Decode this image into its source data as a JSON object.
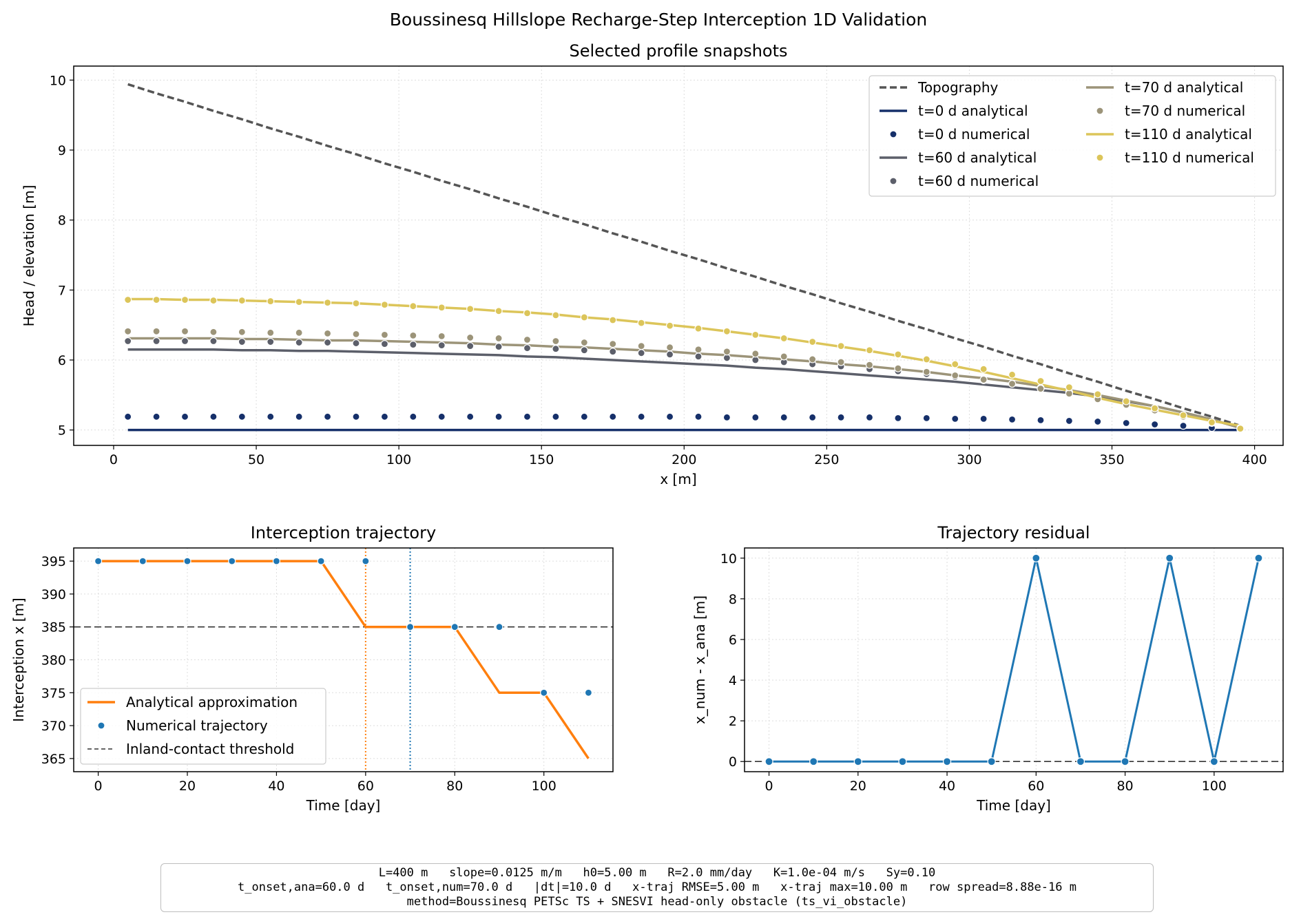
{
  "suptitle": "Boussinesq Hillslope Recharge-Step Interception 1D Validation",
  "chart_data": [
    {
      "type": "line",
      "title": "Selected profile snapshots",
      "xlabel": "x [m]",
      "ylabel": "Head / elevation [m]",
      "xlim": [
        -14,
        410
      ],
      "ylim": [
        4.78,
        10.2
      ],
      "xticks": [
        0,
        50,
        100,
        150,
        200,
        250,
        300,
        350,
        400
      ],
      "yticks": [
        5,
        6,
        7,
        8,
        9,
        10
      ],
      "grid": true,
      "legend_position": "upper right",
      "legend_columns": 2,
      "x": [
        5,
        15,
        25,
        35,
        45,
        55,
        65,
        75,
        85,
        95,
        105,
        115,
        125,
        135,
        145,
        155,
        165,
        175,
        185,
        195,
        205,
        215,
        225,
        235,
        245,
        255,
        265,
        275,
        285,
        295,
        305,
        315,
        325,
        335,
        345,
        355,
        365,
        375,
        385,
        395
      ],
      "series": [
        {
          "name": "Topography",
          "kind": "line",
          "style": "dashed",
          "color": "#555555",
          "values": [
            9.94,
            9.81,
            9.69,
            9.56,
            9.44,
            9.31,
            9.19,
            9.06,
            8.94,
            8.81,
            8.69,
            8.56,
            8.44,
            8.31,
            8.19,
            8.06,
            7.94,
            7.81,
            7.69,
            7.56,
            7.44,
            7.31,
            7.19,
            7.06,
            6.94,
            6.81,
            6.69,
            6.56,
            6.44,
            6.31,
            6.19,
            6.06,
            5.94,
            5.81,
            5.69,
            5.56,
            5.44,
            5.31,
            5.19,
            5.06
          ]
        },
        {
          "name": "t=0 d analytical",
          "kind": "line",
          "color": "#16306a",
          "values": [
            5.0,
            5.0,
            5.0,
            5.0,
            5.0,
            5.0,
            5.0,
            5.0,
            5.0,
            5.0,
            5.0,
            5.0,
            5.0,
            5.0,
            5.0,
            5.0,
            5.0,
            5.0,
            5.0,
            5.0,
            5.0,
            5.0,
            5.0,
            5.0,
            5.0,
            5.0,
            5.0,
            5.0,
            5.0,
            5.0,
            5.0,
            5.0,
            5.0,
            5.0,
            5.0,
            5.0,
            5.0,
            5.0,
            5.0,
            5.0
          ]
        },
        {
          "name": "t=0 d numerical",
          "kind": "scatter",
          "color": "#16306a",
          "values": [
            5.19,
            5.19,
            5.19,
            5.19,
            5.19,
            5.19,
            5.19,
            5.19,
            5.19,
            5.19,
            5.19,
            5.19,
            5.19,
            5.19,
            5.19,
            5.19,
            5.19,
            5.19,
            5.19,
            5.19,
            5.19,
            5.18,
            5.18,
            5.18,
            5.18,
            5.18,
            5.18,
            5.17,
            5.17,
            5.16,
            5.16,
            5.15,
            5.14,
            5.13,
            5.12,
            5.1,
            5.08,
            5.06,
            5.03,
            5.01
          ]
        },
        {
          "name": "t=60 d analytical",
          "kind": "line",
          "color": "#5c5f6a",
          "values": [
            6.15,
            6.15,
            6.15,
            6.15,
            6.14,
            6.14,
            6.13,
            6.13,
            6.12,
            6.11,
            6.1,
            6.09,
            6.08,
            6.07,
            6.05,
            6.04,
            6.02,
            6.0,
            5.98,
            5.96,
            5.94,
            5.92,
            5.89,
            5.87,
            5.84,
            5.81,
            5.78,
            5.75,
            5.72,
            5.69,
            5.65,
            5.61,
            5.57,
            5.53,
            5.48,
            5.41,
            5.34,
            5.25,
            5.15,
            5.03
          ]
        },
        {
          "name": "t=60 d numerical",
          "kind": "scatter",
          "color": "#5c5f6a",
          "values": [
            6.27,
            6.27,
            6.27,
            6.27,
            6.26,
            6.26,
            6.25,
            6.25,
            6.24,
            6.23,
            6.22,
            6.21,
            6.2,
            6.19,
            6.17,
            6.16,
            6.14,
            6.12,
            6.1,
            6.08,
            6.05,
            6.03,
            6.0,
            5.97,
            5.94,
            5.91,
            5.87,
            5.84,
            5.8,
            5.76,
            5.71,
            5.66,
            5.6,
            5.54,
            5.47,
            5.4,
            5.31,
            5.2,
            5.1,
            5.02
          ]
        },
        {
          "name": "t=70 d analytical",
          "kind": "line",
          "color": "#9c9479",
          "values": [
            6.31,
            6.31,
            6.31,
            6.31,
            6.3,
            6.3,
            6.29,
            6.28,
            6.28,
            6.27,
            6.26,
            6.25,
            6.24,
            6.22,
            6.21,
            6.19,
            6.18,
            6.16,
            6.14,
            6.12,
            6.09,
            6.07,
            6.04,
            6.01,
            5.98,
            5.94,
            5.91,
            5.87,
            5.83,
            5.78,
            5.74,
            5.69,
            5.63,
            5.57,
            5.5,
            5.42,
            5.34,
            5.25,
            5.15,
            5.03
          ]
        },
        {
          "name": "t=70 d numerical",
          "kind": "scatter",
          "color": "#9c9479",
          "values": [
            6.41,
            6.41,
            6.41,
            6.4,
            6.4,
            6.39,
            6.39,
            6.38,
            6.37,
            6.36,
            6.35,
            6.34,
            6.32,
            6.31,
            6.29,
            6.27,
            6.25,
            6.23,
            6.2,
            6.18,
            6.15,
            6.12,
            6.09,
            6.05,
            6.01,
            5.97,
            5.93,
            5.88,
            5.83,
            5.78,
            5.72,
            5.66,
            5.59,
            5.52,
            5.44,
            5.36,
            5.28,
            5.19,
            5.11,
            5.03
          ]
        },
        {
          "name": "t=110 d analytical",
          "kind": "line",
          "color": "#dcc55a",
          "values": [
            6.87,
            6.87,
            6.86,
            6.86,
            6.85,
            6.84,
            6.83,
            6.82,
            6.81,
            6.79,
            6.77,
            6.75,
            6.73,
            6.7,
            6.68,
            6.65,
            6.61,
            6.58,
            6.54,
            6.5,
            6.46,
            6.41,
            6.36,
            6.31,
            6.25,
            6.19,
            6.13,
            6.06,
            5.99,
            5.91,
            5.83,
            5.74,
            5.65,
            5.56,
            5.46,
            5.37,
            5.29,
            5.21,
            5.13,
            5.06
          ]
        },
        {
          "name": "t=110 d numerical",
          "kind": "scatter",
          "color": "#dcc55a",
          "values": [
            6.86,
            6.86,
            6.86,
            6.85,
            6.85,
            6.84,
            6.83,
            6.82,
            6.81,
            6.79,
            6.77,
            6.75,
            6.73,
            6.7,
            6.67,
            6.64,
            6.61,
            6.57,
            6.53,
            6.49,
            6.45,
            6.41,
            6.36,
            6.31,
            6.26,
            6.2,
            6.14,
            6.08,
            6.01,
            5.94,
            5.87,
            5.79,
            5.7,
            5.61,
            5.51,
            5.41,
            5.31,
            5.21,
            5.11,
            5.02
          ]
        }
      ]
    },
    {
      "type": "line",
      "title": "Interception trajectory",
      "xlabel": "Time [day]",
      "ylabel": "Interception x [m]",
      "xlim": [
        -5.5,
        115.5
      ],
      "ylim": [
        363,
        397
      ],
      "xticks": [
        0,
        20,
        40,
        60,
        80,
        100
      ],
      "yticks": [
        365,
        370,
        375,
        380,
        385,
        390,
        395
      ],
      "grid": true,
      "legend_position": "lower left",
      "x": [
        0,
        10,
        20,
        30,
        40,
        50,
        60,
        70,
        80,
        90,
        100,
        110
      ],
      "series": [
        {
          "name": "Analytical approximation",
          "kind": "line",
          "color": "#ff7f0e",
          "values": [
            395,
            395,
            395,
            395,
            395,
            395,
            385,
            385,
            385,
            375,
            375,
            365
          ]
        },
        {
          "name": "Numerical trajectory",
          "kind": "scatter",
          "color": "#1f77b4",
          "values": [
            395,
            395,
            395,
            395,
            395,
            395,
            395,
            385,
            385,
            385,
            375,
            375
          ]
        },
        {
          "name": "Inland-contact threshold",
          "kind": "hline",
          "style": "dashed",
          "color": "#333333",
          "value": 385
        }
      ],
      "vlines": [
        {
          "x": 60,
          "color": "#ff7f0e",
          "style": "dotted"
        },
        {
          "x": 70,
          "color": "#1f77b4",
          "style": "dotted"
        }
      ]
    },
    {
      "type": "line",
      "title": "Trajectory residual",
      "xlabel": "Time [day]",
      "ylabel": "x_num - x_ana [m]",
      "xlim": [
        -5.5,
        115.5
      ],
      "ylim": [
        -0.5,
        10.5
      ],
      "xticks": [
        0,
        20,
        40,
        60,
        80,
        100
      ],
      "yticks": [
        0,
        2,
        4,
        6,
        8,
        10
      ],
      "grid": true,
      "x": [
        0,
        10,
        20,
        30,
        40,
        50,
        60,
        70,
        80,
        90,
        100,
        110
      ],
      "series": [
        {
          "name": "",
          "kind": "line+markers",
          "color": "#1f77b4",
          "values": [
            0,
            0,
            0,
            0,
            0,
            0,
            10,
            0,
            0,
            10,
            0,
            10
          ]
        },
        {
          "name": "",
          "kind": "hline",
          "style": "dashed",
          "color": "#333333",
          "value": 0
        }
      ]
    }
  ],
  "footer": {
    "line1": "L=400 m   slope=0.0125 m/m   h0=5.00 m   R=2.0 mm/day   K=1.0e-04 m/s   Sy=0.10",
    "line2": "t_onset,ana=60.0 d   t_onset,num=70.0 d   |dt|=10.0 d   x-traj RMSE=5.00 m   x-traj max=10.00 m   row spread=8.88e-16 m",
    "line3": "method=Boussinesq PETSc TS + SNESVI head-only obstacle (ts_vi_obstacle)"
  }
}
